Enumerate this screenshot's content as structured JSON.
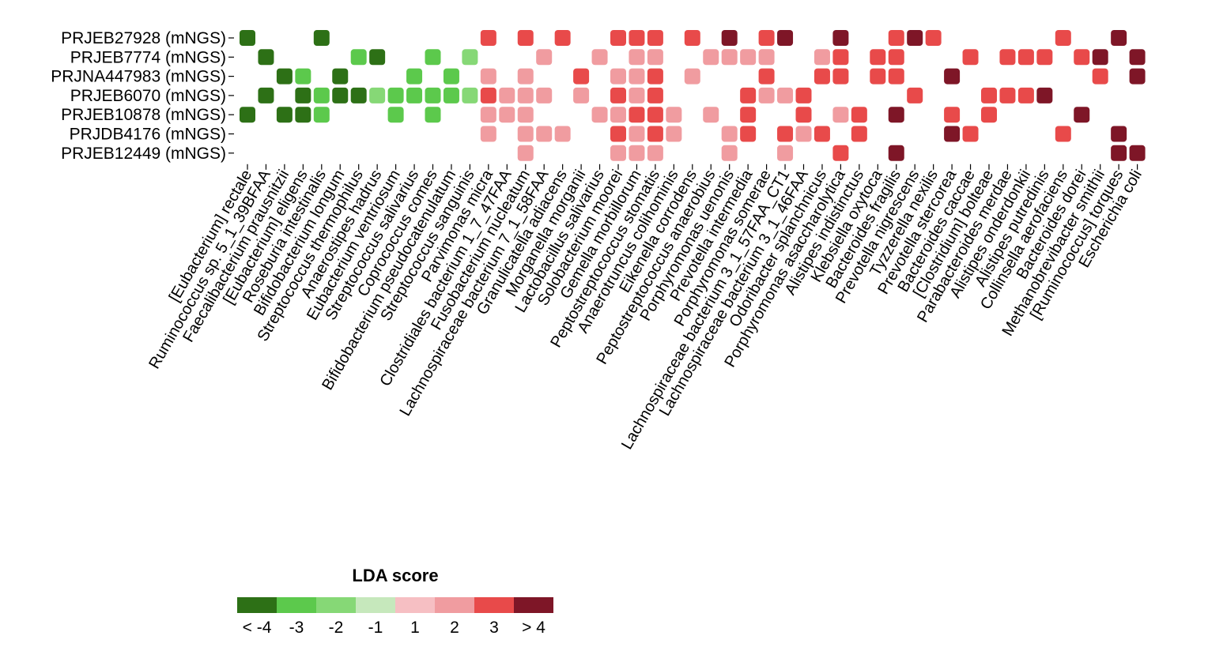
{
  "chart_data": {
    "type": "heatmap",
    "rows": [
      "PRJEB27928 (mNGS)",
      "PRJEB7774 (mNGS)",
      "PRJNA447983 (mNGS)",
      "PRJEB6070 (mNGS)",
      "PRJEB10878 (mNGS)",
      "PRJDB4176 (mNGS)",
      "PRJEB12449 (mNGS)"
    ],
    "columns": [
      "[Eubacterium] rectale",
      "Ruminococcus sp. 5_1_39BFAA",
      "Faecalibacterium prausnitzii",
      "[Eubacterium] eligens",
      "Roseburia intestinalis",
      "Bifidobacterium longum",
      "Streptococcus thermophilus",
      "Anaerostipes hadrus",
      "Eubacterium ventriosum",
      "Streptococcus salivarius",
      "Coprococcus comes",
      "Bifidobacterium pseudocatenulatum",
      "Streptococcus sanguinis",
      "Parvimonas micra",
      "Clostridiales bacterium 1_7_47FAA",
      "Fusobacterium nucleatum",
      "Lachnospiraceae bacterium 7_1_58FAA",
      "Granulicatella adiacens",
      "Morganella morganii",
      "Lactobacillus salivarius",
      "Solobacterium moorei",
      "Gemella morbillorum",
      "Peptostreptococcus stomatis",
      "Anaerotruncus colihominis",
      "Eikenella corrodens",
      "Peptostreptococcus anaerobius",
      "Porphyromonas uenonis",
      "Prevotella intermedia",
      "Porphyromonas somerae",
      "Lachnospiraceae bacterium 3_1_57FAA_CT1",
      "Lachnospiraceae bacterium 3_1_46FAA",
      "Odoribacter splanchnicus",
      "Porphyromonas asaccharolytica",
      "Alistipes indistinctus",
      "Klebsiella oxytoca",
      "Bacteroides fragilis",
      "Prevotella nigrescens",
      "Tyzzerella nexilis",
      "Prevotella stercorea",
      "Bacteroides caccae",
      "[Clostridium] bolteae",
      "Parabacteroides merdae",
      "Alistipes onderdonkii",
      "Alistipes putredinis",
      "Collinsella aerofaciens",
      "Bacteroides dorei",
      "Methanobrevibacter smithii",
      "[Ruminococcus] torques",
      "Escherichia coli"
    ],
    "values": [
      [
        -4,
        0,
        0,
        0,
        -4,
        0,
        0,
        0,
        0,
        0,
        0,
        0,
        0,
        3,
        0,
        3,
        0,
        3,
        0,
        0,
        3,
        3,
        3,
        0,
        3,
        0,
        4,
        0,
        3,
        4,
        0,
        0,
        4,
        0,
        0,
        3,
        4,
        3,
        0,
        0,
        0,
        0,
        0,
        0,
        3,
        0,
        0,
        4,
        0
      ],
      [
        0,
        -4,
        0,
        0,
        0,
        0,
        -3,
        -4,
        0,
        0,
        -3,
        0,
        -2,
        0,
        0,
        0,
        2,
        0,
        0,
        2,
        0,
        2,
        2,
        0,
        0,
        2,
        2,
        2,
        2,
        0,
        0,
        2,
        3,
        0,
        3,
        3,
        0,
        0,
        0,
        3,
        0,
        3,
        3,
        3,
        0,
        3,
        4,
        0,
        4
      ],
      [
        0,
        0,
        -4,
        -3,
        0,
        -4,
        0,
        0,
        0,
        -3,
        0,
        -3,
        0,
        2,
        0,
        2,
        0,
        0,
        3,
        0,
        2,
        2,
        3,
        0,
        2,
        0,
        0,
        0,
        3,
        0,
        0,
        3,
        3,
        0,
        3,
        3,
        0,
        0,
        4,
        0,
        0,
        0,
        0,
        0,
        0,
        0,
        3,
        0,
        4
      ],
      [
        0,
        -4,
        0,
        -4,
        -3,
        -4,
        -4,
        -2,
        -3,
        -3,
        -3,
        -3,
        -2,
        3,
        2,
        2,
        2,
        0,
        2,
        0,
        3,
        2,
        3,
        0,
        0,
        0,
        0,
        3,
        2,
        2,
        3,
        0,
        0,
        0,
        0,
        0,
        3,
        0,
        0,
        0,
        3,
        3,
        3,
        4,
        0,
        0,
        0,
        0,
        0
      ],
      [
        -4,
        0,
        -4,
        -4,
        -3,
        0,
        0,
        0,
        -3,
        0,
        -3,
        0,
        0,
        2,
        2,
        2,
        0,
        0,
        0,
        2,
        2,
        3,
        3,
        2,
        0,
        2,
        0,
        3,
        0,
        0,
        3,
        0,
        2,
        3,
        0,
        4,
        0,
        0,
        3,
        0,
        3,
        0,
        0,
        0,
        0,
        4,
        0,
        0,
        0
      ],
      [
        0,
        0,
        0,
        0,
        0,
        0,
        0,
        0,
        0,
        0,
        0,
        0,
        0,
        2,
        0,
        2,
        2,
        2,
        0,
        0,
        3,
        2,
        3,
        2,
        0,
        0,
        2,
        3,
        0,
        3,
        2,
        3,
        0,
        3,
        0,
        0,
        0,
        0,
        4,
        3,
        0,
        0,
        0,
        0,
        3,
        0,
        0,
        4,
        0
      ],
      [
        0,
        0,
        0,
        0,
        0,
        0,
        0,
        0,
        0,
        0,
        0,
        0,
        0,
        0,
        0,
        2,
        0,
        0,
        0,
        0,
        2,
        2,
        2,
        0,
        0,
        0,
        2,
        0,
        0,
        2,
        0,
        0,
        3,
        0,
        0,
        4,
        0,
        0,
        0,
        0,
        0,
        0,
        0,
        0,
        0,
        0,
        0,
        4,
        4
      ]
    ],
    "legend": {
      "title": "LDA score",
      "levels": [
        -4,
        -3,
        -2,
        -1,
        1,
        2,
        3,
        4
      ],
      "labels": [
        "< -4",
        "-3",
        "-2",
        "-1",
        "1",
        "2",
        "3",
        "> 4"
      ],
      "colors": [
        "#2d7016",
        "#5cc94c",
        "#86d876",
        "#c6e8bc",
        "#f6bfc3",
        "#f09ca0",
        "#e84a4a",
        "#7e1627"
      ]
    }
  }
}
